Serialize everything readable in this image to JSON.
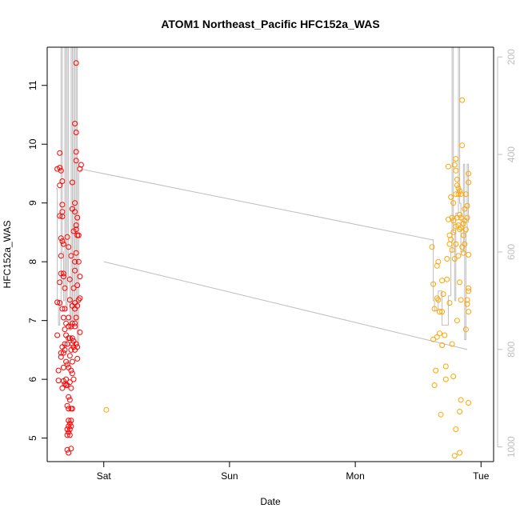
{
  "chart_data": {
    "type": "scatter",
    "title": "ATOM1 Northeast_Pacific HFC152a_WAS",
    "xlabel": "Date",
    "ylabel": "HFC152a_WAS",
    "x_ticks": [
      "Sat",
      "Sun",
      "Mon",
      "Tue"
    ],
    "y_ticks": [
      5,
      6,
      7,
      8,
      9,
      10,
      11
    ],
    "y2_ticks": [
      200,
      400,
      600,
      800,
      1000
    ],
    "xlim_days": [
      -0.45,
      3.1
    ],
    "ylim": [
      4.6,
      11.65
    ],
    "y2lim_reversed": [
      180,
      1030
    ],
    "grid": false,
    "legend": "none",
    "colors": {
      "series1": "#ff0000",
      "series2": "#ffa500",
      "line": "#bebebe",
      "axis_right": "#bebebe"
    },
    "series": [
      {
        "color": "#ff0000",
        "points": [
          [
            -0.37,
            9.58
          ],
          [
            -0.37,
            7.31
          ],
          [
            -0.37,
            6.75
          ],
          [
            -0.36,
            6.15
          ],
          [
            -0.36,
            5.98
          ],
          [
            -0.35,
            9.85
          ],
          [
            -0.35,
            9.6
          ],
          [
            -0.35,
            9.3
          ],
          [
            -0.35,
            8.78
          ],
          [
            -0.35,
            7.65
          ],
          [
            -0.35,
            7.3
          ],
          [
            -0.34,
            9.55
          ],
          [
            -0.34,
            8.4
          ],
          [
            -0.34,
            8.1
          ],
          [
            -0.34,
            7.8
          ],
          [
            -0.34,
            6.45
          ],
          [
            -0.34,
            6.38
          ],
          [
            -0.33,
            9.37
          ],
          [
            -0.33,
            8.97
          ],
          [
            -0.33,
            8.85
          ],
          [
            -0.33,
            8.77
          ],
          [
            -0.33,
            8.35
          ],
          [
            -0.33,
            7.2
          ],
          [
            -0.33,
            6.55
          ],
          [
            -0.33,
            5.85
          ],
          [
            -0.32,
            8.3
          ],
          [
            -0.32,
            7.8
          ],
          [
            -0.32,
            7.75
          ],
          [
            -0.32,
            7.05
          ],
          [
            -0.32,
            6.45
          ],
          [
            -0.32,
            6.2
          ],
          [
            -0.32,
            5.97
          ],
          [
            -0.31,
            7.55
          ],
          [
            -0.31,
            7.2
          ],
          [
            -0.31,
            6.85
          ],
          [
            -0.31,
            6.6
          ],
          [
            -0.31,
            6.5
          ],
          [
            -0.31,
            5.92
          ],
          [
            -0.3,
            6.95
          ],
          [
            -0.3,
            6.75
          ],
          [
            -0.3,
            6.3
          ],
          [
            -0.3,
            6.0
          ],
          [
            -0.3,
            5.9
          ],
          [
            -0.29,
            8.42
          ],
          [
            -0.29,
            6.6
          ],
          [
            -0.29,
            6.25
          ],
          [
            -0.29,
            5.9
          ],
          [
            -0.29,
            5.55
          ],
          [
            -0.29,
            5.15
          ],
          [
            -0.29,
            5.05
          ],
          [
            -0.29,
            4.8
          ],
          [
            -0.28,
            8.25
          ],
          [
            -0.28,
            7.05
          ],
          [
            -0.28,
            6.9
          ],
          [
            -0.28,
            6.7
          ],
          [
            -0.28,
            6.2
          ],
          [
            -0.28,
            5.7
          ],
          [
            -0.28,
            5.5
          ],
          [
            -0.28,
            5.3
          ],
          [
            -0.28,
            5.2
          ],
          [
            -0.28,
            5.1
          ],
          [
            -0.28,
            4.75
          ],
          [
            -0.27,
            7.7
          ],
          [
            -0.27,
            7.35
          ],
          [
            -0.27,
            6.7
          ],
          [
            -0.27,
            6.4
          ],
          [
            -0.27,
            5.95
          ],
          [
            -0.27,
            5.65
          ],
          [
            -0.27,
            5.25
          ],
          [
            -0.27,
            5.15
          ],
          [
            -0.27,
            5.05
          ],
          [
            -0.26,
            8.1
          ],
          [
            -0.26,
            6.9
          ],
          [
            -0.26,
            6.5
          ],
          [
            -0.26,
            6.15
          ],
          [
            -0.26,
            5.85
          ],
          [
            -0.26,
            5.5
          ],
          [
            -0.26,
            5.3
          ],
          [
            -0.26,
            5.2
          ],
          [
            -0.26,
            4.82
          ],
          [
            -0.25,
            9.35
          ],
          [
            -0.25,
            8.9
          ],
          [
            -0.25,
            7.25
          ],
          [
            -0.25,
            6.95
          ],
          [
            -0.25,
            6.7
          ],
          [
            -0.25,
            6.6
          ],
          [
            -0.25,
            6.3
          ],
          [
            -0.25,
            6.1
          ],
          [
            -0.25,
            5.5
          ],
          [
            -0.24,
            8.52
          ],
          [
            -0.24,
            7.55
          ],
          [
            -0.24,
            6.65
          ],
          [
            -0.24,
            6.55
          ],
          [
            -0.24,
            6.0
          ],
          [
            -0.23,
            10.35
          ],
          [
            -0.23,
            9.0
          ],
          [
            -0.23,
            8.85
          ],
          [
            -0.23,
            8.0
          ],
          [
            -0.23,
            7.85
          ],
          [
            -0.23,
            7.3
          ],
          [
            -0.23,
            7.2
          ],
          [
            -0.23,
            6.95
          ],
          [
            -0.23,
            6.9
          ],
          [
            -0.23,
            6.5
          ],
          [
            -0.22,
            11.38
          ],
          [
            -0.22,
            10.2
          ],
          [
            -0.22,
            9.87
          ],
          [
            -0.22,
            9.72
          ],
          [
            -0.22,
            8.62
          ],
          [
            -0.22,
            8.55
          ],
          [
            -0.22,
            8.15
          ],
          [
            -0.22,
            7.05
          ],
          [
            -0.22,
            6.6
          ],
          [
            -0.21,
            8.75
          ],
          [
            -0.21,
            8.45
          ],
          [
            -0.21,
            7.6
          ],
          [
            -0.21,
            7.25
          ],
          [
            -0.21,
            6.55
          ],
          [
            -0.21,
            6.35
          ],
          [
            -0.2,
            8.45
          ],
          [
            -0.2,
            8.0
          ],
          [
            -0.2,
            7.35
          ],
          [
            -0.19,
            9.58
          ],
          [
            -0.19,
            7.75
          ],
          [
            -0.19,
            7.38
          ],
          [
            -0.19,
            6.8
          ],
          [
            -0.18,
            9.65
          ]
        ]
      },
      {
        "color": "#ffa500",
        "points": [
          [
            0.02,
            5.48
          ],
          [
            2.61,
            8.25
          ],
          [
            2.62,
            7.62
          ],
          [
            2.62,
            6.68
          ],
          [
            2.63,
            7.2
          ],
          [
            2.63,
            5.9
          ],
          [
            2.64,
            6.15
          ],
          [
            2.65,
            7.93
          ],
          [
            2.65,
            7.38
          ],
          [
            2.65,
            6.72
          ],
          [
            2.66,
            8.0
          ],
          [
            2.66,
            7.35
          ],
          [
            2.67,
            7.15
          ],
          [
            2.67,
            6.78
          ],
          [
            2.68,
            5.4
          ],
          [
            2.69,
            7.15
          ],
          [
            2.69,
            7.68
          ],
          [
            2.69,
            6.58
          ],
          [
            2.7,
            7.45
          ],
          [
            2.71,
            6.75
          ],
          [
            2.72,
            6.22
          ],
          [
            2.72,
            6.0
          ],
          [
            2.73,
            8.05
          ],
          [
            2.73,
            7.7
          ],
          [
            2.74,
            9.62
          ],
          [
            2.74,
            8.72
          ],
          [
            2.75,
            8.45
          ],
          [
            2.75,
            8.3
          ],
          [
            2.75,
            7.3
          ],
          [
            2.76,
            8.38
          ],
          [
            2.76,
            9.1
          ],
          [
            2.77,
            8.75
          ],
          [
            2.77,
            8.2
          ],
          [
            2.77,
            6.6
          ],
          [
            2.78,
            9.0
          ],
          [
            2.78,
            8.7
          ],
          [
            2.78,
            8.5
          ],
          [
            2.78,
            6.05
          ],
          [
            2.79,
            9.65
          ],
          [
            2.79,
            8.05
          ],
          [
            2.79,
            4.7
          ],
          [
            2.8,
            9.75
          ],
          [
            2.8,
            9.55
          ],
          [
            2.8,
            9.15
          ],
          [
            2.8,
            8.6
          ],
          [
            2.8,
            8.3
          ],
          [
            2.8,
            5.15
          ],
          [
            2.81,
            9.4
          ],
          [
            2.81,
            9.3
          ],
          [
            2.81,
            8.75
          ],
          [
            2.81,
            7.0
          ],
          [
            2.82,
            9.25
          ],
          [
            2.82,
            9.15
          ],
          [
            2.82,
            8.62
          ],
          [
            2.82,
            8.1
          ],
          [
            2.83,
            9.2
          ],
          [
            2.83,
            8.8
          ],
          [
            2.83,
            8.55
          ],
          [
            2.83,
            7.65
          ],
          [
            2.83,
            4.75
          ],
          [
            2.83,
            5.45
          ],
          [
            2.84,
            9.15
          ],
          [
            2.84,
            8.75
          ],
          [
            2.84,
            8.58
          ],
          [
            2.84,
            7.35
          ],
          [
            2.84,
            5.65
          ],
          [
            2.85,
            9.98
          ],
          [
            2.85,
            10.75
          ],
          [
            2.85,
            8.25
          ],
          [
            2.86,
            8.65
          ],
          [
            2.86,
            8.45
          ],
          [
            2.86,
            8.15
          ],
          [
            2.87,
            8.9
          ],
          [
            2.87,
            8.7
          ],
          [
            2.87,
            8.3
          ],
          [
            2.88,
            9.15
          ],
          [
            2.88,
            8.55
          ],
          [
            2.88,
            6.85
          ],
          [
            2.89,
            8.95
          ],
          [
            2.89,
            8.75
          ],
          [
            2.89,
            7.35
          ],
          [
            2.89,
            7.28
          ],
          [
            2.9,
            9.35
          ],
          [
            2.9,
            9.5
          ],
          [
            2.9,
            7.15
          ],
          [
            2.9,
            7.5
          ],
          [
            2.9,
            7.55
          ],
          [
            2.9,
            8.12
          ],
          [
            2.9,
            5.6
          ]
        ]
      }
    ],
    "altitude_line": [
      [
        -0.38,
        470
      ],
      [
        -0.37,
        470
      ],
      [
        -0.37,
        700
      ],
      [
        -0.36,
        700
      ],
      [
        -0.36,
        750
      ],
      [
        -0.35,
        750
      ],
      [
        -0.35,
        700
      ],
      [
        -0.34,
        700
      ],
      [
        -0.34,
        180
      ],
      [
        -0.33,
        180
      ],
      [
        -0.33,
        600
      ],
      [
        -0.32,
        600
      ],
      [
        -0.32,
        700
      ],
      [
        -0.31,
        700
      ],
      [
        -0.31,
        180
      ],
      [
        -0.3,
        180
      ],
      [
        -0.3,
        720
      ],
      [
        -0.29,
        720
      ],
      [
        -0.29,
        180
      ],
      [
        -0.28,
        180
      ],
      [
        -0.28,
        650
      ],
      [
        -0.27,
        650
      ],
      [
        -0.27,
        760
      ],
      [
        -0.26,
        760
      ],
      [
        -0.26,
        180
      ],
      [
        -0.25,
        180
      ],
      [
        -0.25,
        740
      ],
      [
        -0.24,
        740
      ],
      [
        -0.24,
        180
      ],
      [
        -0.23,
        180
      ],
      [
        -0.23,
        740
      ],
      [
        -0.22,
        740
      ],
      [
        -0.22,
        180
      ],
      [
        -0.21,
        180
      ],
      [
        -0.21,
        790
      ],
      [
        -0.2,
        790
      ],
      [
        -0.2,
        440
      ],
      [
        -0.18,
        430
      ],
      [
        2.61,
        575
      ],
      [
        2.62,
        575
      ],
      [
        2.62,
        700
      ],
      [
        2.63,
        700
      ],
      [
        2.63,
        720
      ],
      [
        2.66,
        720
      ],
      [
        2.66,
        680
      ],
      [
        2.69,
        680
      ],
      [
        2.69,
        750
      ],
      [
        2.74,
        750
      ],
      [
        2.74,
        690
      ],
      [
        2.76,
        690
      ],
      [
        2.76,
        600
      ],
      [
        2.77,
        600
      ],
      [
        2.77,
        180
      ],
      [
        2.78,
        180
      ],
      [
        2.78,
        560
      ],
      [
        2.79,
        560
      ],
      [
        2.79,
        700
      ],
      [
        2.8,
        700
      ],
      [
        2.8,
        520
      ],
      [
        2.82,
        520
      ],
      [
        2.82,
        180
      ],
      [
        2.83,
        180
      ],
      [
        2.83,
        500
      ],
      [
        2.84,
        500
      ],
      [
        2.84,
        600
      ],
      [
        2.86,
        600
      ],
      [
        2.86,
        420
      ],
      [
        2.87,
        420
      ],
      [
        2.87,
        780
      ],
      [
        2.88,
        780
      ],
      [
        2.88,
        560
      ],
      [
        2.89,
        560
      ],
      [
        2.89,
        420
      ],
      [
        2.9,
        420
      ],
      [
        2.9,
        540
      ]
    ],
    "altitude_segments": [
      [
        [
          0.0,
          620
        ],
        [
          2.89,
          800
        ]
      ]
    ]
  }
}
